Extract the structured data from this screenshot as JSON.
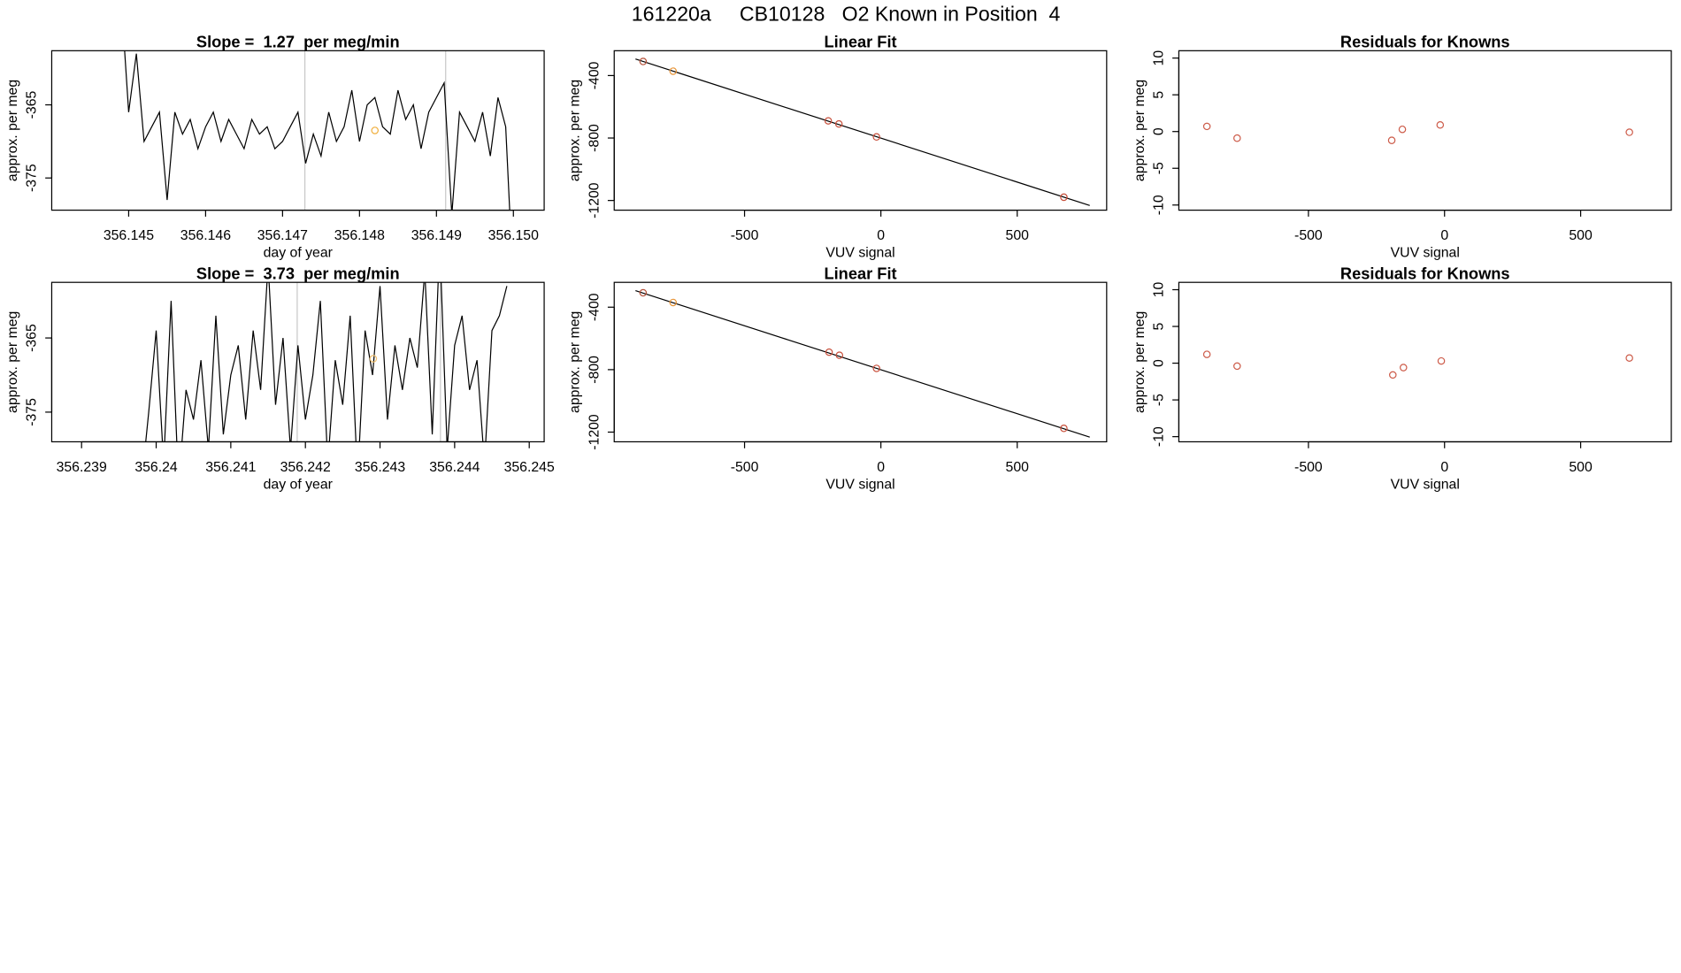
{
  "title": "161220a     CB10128   O2 Known in Position  4",
  "chart_data": [
    {
      "type": "line",
      "title": "Slope =  1.27  per meg/min",
      "xlabel": "day of year",
      "ylabel": "approx. per meg",
      "color": "#000000",
      "x": [
        356.1449,
        356.145,
        356.1451,
        356.1452,
        356.1453,
        356.1454,
        356.1455,
        356.1456,
        356.1457,
        356.1458,
        356.1459,
        356.146,
        356.1461,
        356.1462,
        356.1463,
        356.1464,
        356.1465,
        356.1466,
        356.1467,
        356.1468,
        356.1469,
        356.147,
        356.1471,
        356.1472,
        356.1473,
        356.1474,
        356.1475,
        356.1476,
        356.1477,
        356.1478,
        356.1479,
        356.148,
        356.1481,
        356.1482,
        356.1483,
        356.1484,
        356.1485,
        356.1486,
        356.1487,
        356.1488,
        356.1489,
        356.149,
        356.1491,
        356.1492,
        356.1493,
        356.1494,
        356.1495,
        356.1496,
        356.1497,
        356.1498,
        356.1499,
        356.15
      ],
      "values": [
        -350,
        -366,
        -358,
        -370,
        -368,
        -366,
        -378,
        -366,
        -369,
        -367,
        -371,
        -368,
        -366,
        -370,
        -367,
        -369,
        -371,
        -367,
        -369,
        -368,
        -371,
        -370,
        -368,
        -366,
        -373,
        -369,
        -372,
        -366,
        -370,
        -368,
        -363,
        -370,
        -365,
        -364,
        -368,
        -369,
        -363,
        -367,
        -365,
        -371,
        -366,
        -364,
        -362,
        -380,
        -366,
        -368,
        -370,
        -366,
        -372,
        -364,
        -368,
        -390
      ],
      "xlim": [
        356.144,
        356.1504
      ],
      "ylim": [
        -379.4,
        -357.6
      ],
      "xticks": [
        356.145,
        356.146,
        356.147,
        356.148,
        356.149,
        {
          "value": 356.15,
          "label": "356.150"
        }
      ],
      "yticks": [
        -365,
        -375
      ],
      "vlines": [
        356.14729,
        356.14912
      ],
      "vline_color": "#c8c8c8",
      "marker_x": 356.1482,
      "marker_y": -368.5,
      "marker_color": "#f0b040"
    },
    {
      "type": "scatter",
      "title": "Linear Fit",
      "xlabel": "VUV signal",
      "ylabel": "approx. per meg",
      "x": [
        -872,
        -762,
        -193,
        -154,
        -16,
        671
      ],
      "values": [
        -310,
        -372,
        -690,
        -710,
        -793,
        -1179
      ],
      "point_colors": [
        "#b5523b",
        "#e8963a",
        "#c8503c",
        "#c8503c",
        "#c8503c",
        "#c8503c"
      ],
      "fit_x": [
        -900,
        766
      ],
      "fit_y": [
        -294,
        -1232
      ],
      "fit_color": "#000000",
      "xlim": [
        -978,
        828
      ],
      "ylim": [
        -1262,
        -241
      ],
      "xticks": [
        -500,
        0,
        500
      ],
      "yticks": [
        -400,
        -800,
        -1200
      ]
    },
    {
      "type": "scatter",
      "title": "Residuals for Knowns",
      "xlabel": "VUV signal",
      "ylabel": "approx. per meg",
      "color": "#cd5c4a",
      "x": [
        -873,
        -762,
        -194,
        -155,
        -16,
        679
      ],
      "values": [
        0.7,
        -0.9,
        -1.2,
        0.3,
        0.9,
        -0.1
      ],
      "xlim": [
        -976,
        833
      ],
      "ylim": [
        -10.7,
        11
      ],
      "xticks": [
        -500,
        0,
        500
      ],
      "yticks": [
        10,
        5,
        0,
        -5,
        -10
      ]
    },
    {
      "type": "line",
      "title": "Slope =  3.73  per meg/min",
      "xlabel": "day of year",
      "ylabel": "approx. per meg",
      "color": "#000000",
      "x": [
        356.2398,
        356.2399,
        356.24,
        356.2401,
        356.2402,
        356.2403,
        356.2404,
        356.2405,
        356.2406,
        356.2407,
        356.2408,
        356.2409,
        356.241,
        356.2411,
        356.2412,
        356.2413,
        356.2414,
        356.2415,
        356.2416,
        356.2417,
        356.2418,
        356.2419,
        356.242,
        356.2421,
        356.2422,
        356.2423,
        356.2424,
        356.2425,
        356.2426,
        356.2427,
        356.2428,
        356.2429,
        356.243,
        356.2431,
        356.2432,
        356.2433,
        356.2434,
        356.2435,
        356.2436,
        356.2437,
        356.2438,
        356.2439,
        356.244,
        356.2441,
        356.2442,
        356.2443,
        356.2444,
        356.2445,
        356.2446,
        356.2447
      ],
      "values": [
        -385,
        -375,
        -364,
        -382,
        -360,
        -385,
        -372,
        -376,
        -368,
        -380,
        -362,
        -378,
        -370,
        -366,
        -376,
        -364,
        -372,
        -355,
        -374,
        -365,
        -380,
        -366,
        -376,
        -370,
        -360,
        -382,
        -368,
        -374,
        -362,
        -384,
        -364,
        -370,
        -358,
        -376,
        -366,
        -372,
        -365,
        -369,
        -356,
        -378,
        -352,
        -380,
        -366,
        -362,
        -372,
        -368,
        -382,
        -364,
        -362,
        -358
      ],
      "xlim": [
        356.2386,
        356.2452
      ],
      "ylim": [
        -379,
        -357.5
      ],
      "xticks": [
        356.239,
        356.24,
        356.241,
        356.242,
        356.243,
        356.244,
        356.245
      ],
      "yticks": [
        -365,
        -375
      ],
      "vlines": [
        356.24189,
        356.24381
      ],
      "vline_color": "#c8c8c8",
      "marker_x": 356.24291,
      "marker_y": -367.8,
      "marker_color": "#f0c070"
    },
    {
      "type": "scatter",
      "title": "Linear Fit",
      "xlabel": "VUV signal",
      "ylabel": "approx. per meg",
      "x": [
        -872,
        -762,
        -190,
        -152,
        -16,
        671
      ],
      "values": [
        -308,
        -370,
        -688,
        -708,
        -792,
        -1176
      ],
      "point_colors": [
        "#b5523b",
        "#e8963a",
        "#c8503c",
        "#c8503c",
        "#c8503c",
        "#c8503c"
      ],
      "fit_x": [
        -900,
        766
      ],
      "fit_y": [
        -294,
        -1232
      ],
      "fit_color": "#000000",
      "xlim": [
        -978,
        828
      ],
      "ylim": [
        -1262,
        -241
      ],
      "xticks": [
        -500,
        0,
        500
      ],
      "yticks": [
        -400,
        -800,
        -1200
      ]
    },
    {
      "type": "scatter",
      "title": "Residuals for Knowns",
      "xlabel": "VUV signal",
      "ylabel": "approx. per meg",
      "color": "#cd5c4a",
      "x": [
        -873,
        -762,
        -190,
        -151,
        -12,
        679
      ],
      "values": [
        1.2,
        -0.4,
        -1.6,
        -0.6,
        0.3,
        0.7
      ],
      "xlim": [
        -976,
        833
      ],
      "ylim": [
        -10.7,
        11
      ],
      "xticks": [
        -500,
        0,
        500
      ],
      "yticks": [
        10,
        5,
        0,
        -5,
        -10
      ]
    }
  ]
}
